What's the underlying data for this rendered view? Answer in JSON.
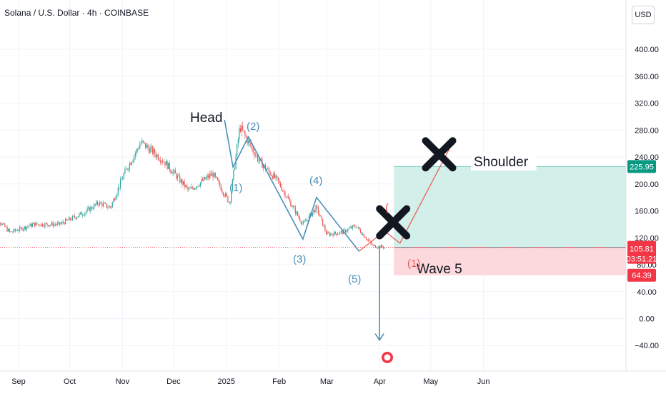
{
  "header": {
    "symbol_title": "Solana / U.S. Dollar · 4h · COINBASE"
  },
  "toolbar": {
    "currency_label": "USD"
  },
  "colors": {
    "up": "#26a69a",
    "down": "#ef5350",
    "wave": "#4a90b8",
    "projection": "#f05454",
    "target_zone": "#d3efe9",
    "stop_zone": "#fcd9dc",
    "last_price": "#f23645"
  },
  "chart_data": {
    "type": "candlestick",
    "x_ticks": [
      "Sep",
      "Oct",
      "Nov",
      "Dec",
      "2025",
      "Feb",
      "Mar",
      "Apr",
      "May",
      "Jun"
    ],
    "y_ticks": [
      "400.00",
      "360.00",
      "320.00",
      "280.00",
      "240.00",
      "200.00",
      "160.00",
      "120.00",
      "80.00",
      "40.00",
      "0.00",
      "−40.00"
    ],
    "ylim": [
      -60,
      420
    ],
    "series": [
      {
        "values": [
          {
            "date": "2024-08-26",
            "price": 158
          },
          {
            "date": "2024-09-06",
            "price": 128
          },
          {
            "date": "2024-09-20",
            "price": 140
          },
          {
            "date": "2024-10-05",
            "price": 140
          },
          {
            "date": "2024-10-20",
            "price": 158
          },
          {
            "date": "2024-10-28",
            "price": 172
          },
          {
            "date": "2024-11-04",
            "price": 165
          },
          {
            "date": "2024-11-12",
            "price": 215
          },
          {
            "date": "2024-11-22",
            "price": 262
          },
          {
            "date": "2024-12-05",
            "price": 235
          },
          {
            "date": "2024-12-20",
            "price": 190
          },
          {
            "date": "2025-01-03",
            "price": 215
          },
          {
            "date": "2025-01-13",
            "price": 172
          },
          {
            "date": "2025-01-19",
            "price": 285
          },
          {
            "date": "2025-01-30",
            "price": 235
          },
          {
            "date": "2025-02-10",
            "price": 205
          },
          {
            "date": "2025-02-25",
            "price": 140
          },
          {
            "date": "2025-03-05",
            "price": 165
          },
          {
            "date": "2025-03-11",
            "price": 125
          },
          {
            "date": "2025-03-20",
            "price": 128
          },
          {
            "date": "2025-03-28",
            "price": 138
          },
          {
            "date": "2025-04-07",
            "price": 108
          },
          {
            "date": "2025-04-14",
            "price": 106
          }
        ]
      }
    ],
    "last_price": {
      "value": 105.81,
      "label": "105.81",
      "countdown": "03:51:21"
    },
    "target_zone": {
      "top": 225.95,
      "entry": 105.81,
      "label": "225.95"
    },
    "stop_zone": {
      "bottom": 64.39,
      "label": "64.39"
    },
    "wave_path": [
      {
        "date": "2025-01-10",
        "price": 295
      },
      {
        "date": "2025-01-15",
        "price": 225
      },
      {
        "date": "2025-01-24",
        "price": 270
      },
      {
        "date": "2025-02-25",
        "price": 118
      },
      {
        "date": "2025-03-05",
        "price": 180
      },
      {
        "date": "2025-03-30",
        "price": 100
      }
    ],
    "drop_arrow": {
      "date": "2025-04-11",
      "from": 105.81,
      "to": -32
    },
    "projection_path": [
      {
        "date": "2025-03-30",
        "price": 100
      },
      {
        "date": "2025-04-14",
        "price": 130
      },
      {
        "date": "2025-04-23",
        "price": 112
      },
      {
        "date": "2025-05-22",
        "price": 252
      }
    ],
    "x_marks": [
      {
        "date": "2025-04-19",
        "price": 143
      },
      {
        "date": "2025-05-16",
        "price": 244
      }
    ],
    "annotations": {
      "head": "Head",
      "shoulder": "Shoulder",
      "wave5": "Wave 5",
      "w1": "(1)",
      "w2": "(2)",
      "w3": "(3)",
      "w4": "(4)",
      "w5": "(5)",
      "proj1": "(",
      "proj2": "(1)"
    }
  }
}
